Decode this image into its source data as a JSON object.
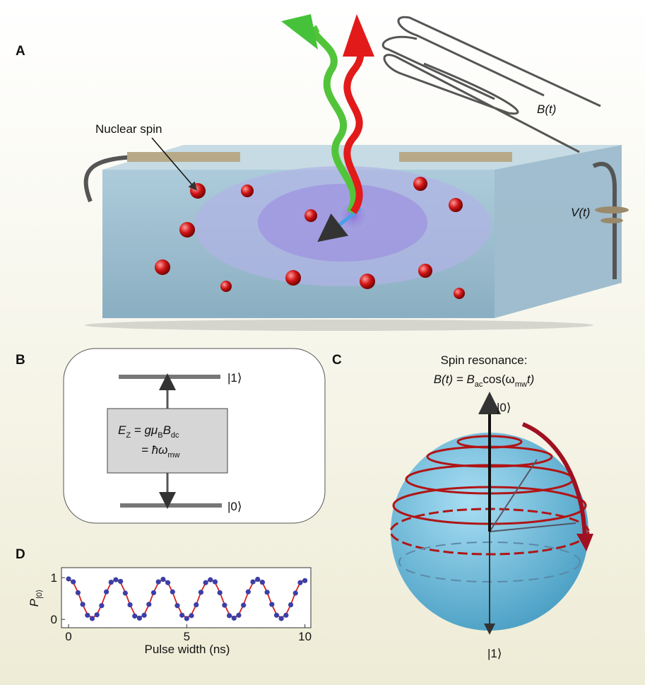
{
  "panels": {
    "labels": [
      "A",
      "B",
      "C",
      "D"
    ],
    "a": {
      "nuclear_spin": "Nuclear spin",
      "field": "B(t)",
      "voltage": "V(t)"
    },
    "b": {
      "upper_state": "|1⟩",
      "lower_state": "|0⟩",
      "equation_line1": [
        "E",
        "Z",
        " = gμ",
        "B",
        "B",
        "dc"
      ],
      "equation_line2": [
        "= ħω",
        "mw"
      ]
    },
    "c": {
      "title": "Spin resonance:",
      "equation": [
        "B(t) = B",
        "ac",
        "cos(ω",
        "mw",
        "t)"
      ],
      "top_state": "|0⟩",
      "bottom_state": "|1⟩"
    }
  },
  "chart_data": {
    "type": "scatter",
    "x_label": "Pulse width (ns)",
    "y_label": [
      "P",
      "|0⟩"
    ],
    "x": [
      0,
      0.2,
      0.4,
      0.6,
      0.8,
      1,
      1.2,
      1.4,
      1.6,
      1.8,
      2,
      2.2,
      2.4,
      2.6,
      2.8,
      3,
      3.2,
      3.4,
      3.6,
      3.8,
      4,
      4.2,
      4.4,
      4.6,
      4.8,
      5,
      5.2,
      5.4,
      5.6,
      5.8,
      6,
      6.2,
      6.4,
      6.6,
      6.8,
      7,
      7.2,
      7.4,
      7.6,
      7.8,
      8,
      8.2,
      8.4,
      8.6,
      8.8,
      9,
      9.2,
      9.4,
      9.6,
      9.8,
      10
    ],
    "series": [
      {
        "type": "line",
        "color": "#d42020",
        "values": [
          0.97,
          0.88,
          0.65,
          0.35,
          0.12,
          0.03,
          0.12,
          0.35,
          0.65,
          0.88,
          0.97,
          0.88,
          0.65,
          0.35,
          0.12,
          0.03,
          0.12,
          0.35,
          0.65,
          0.88,
          0.97,
          0.88,
          0.65,
          0.35,
          0.12,
          0.03,
          0.12,
          0.35,
          0.65,
          0.88,
          0.97,
          0.88,
          0.65,
          0.35,
          0.12,
          0.03,
          0.12,
          0.35,
          0.65,
          0.88,
          0.97,
          0.88,
          0.65,
          0.35,
          0.12,
          0.03,
          0.12,
          0.35,
          0.65,
          0.88,
          0.97
        ]
      },
      {
        "type": "scatter",
        "color": "#3b3fa6",
        "values": [
          0.97,
          0.9,
          0.64,
          0.36,
          0.1,
          0.02,
          0.11,
          0.33,
          0.66,
          0.89,
          0.95,
          0.91,
          0.63,
          0.35,
          0.08,
          0.03,
          0.1,
          0.36,
          0.64,
          0.9,
          0.96,
          0.88,
          0.66,
          0.33,
          0.1,
          0.02,
          0.09,
          0.35,
          0.65,
          0.88,
          0.95,
          0.9,
          0.64,
          0.34,
          0.09,
          0.03,
          0.1,
          0.34,
          0.66,
          0.9,
          0.96,
          0.89,
          0.65,
          0.36,
          0.1,
          0.02,
          0.1,
          0.35,
          0.63,
          0.88,
          0.93
        ]
      }
    ],
    "xlim": [
      -0.3,
      10.25
    ],
    "ylim": [
      -0.2,
      1.24
    ],
    "xticks": [
      0,
      5,
      10
    ],
    "yticks": [
      0,
      1
    ]
  }
}
